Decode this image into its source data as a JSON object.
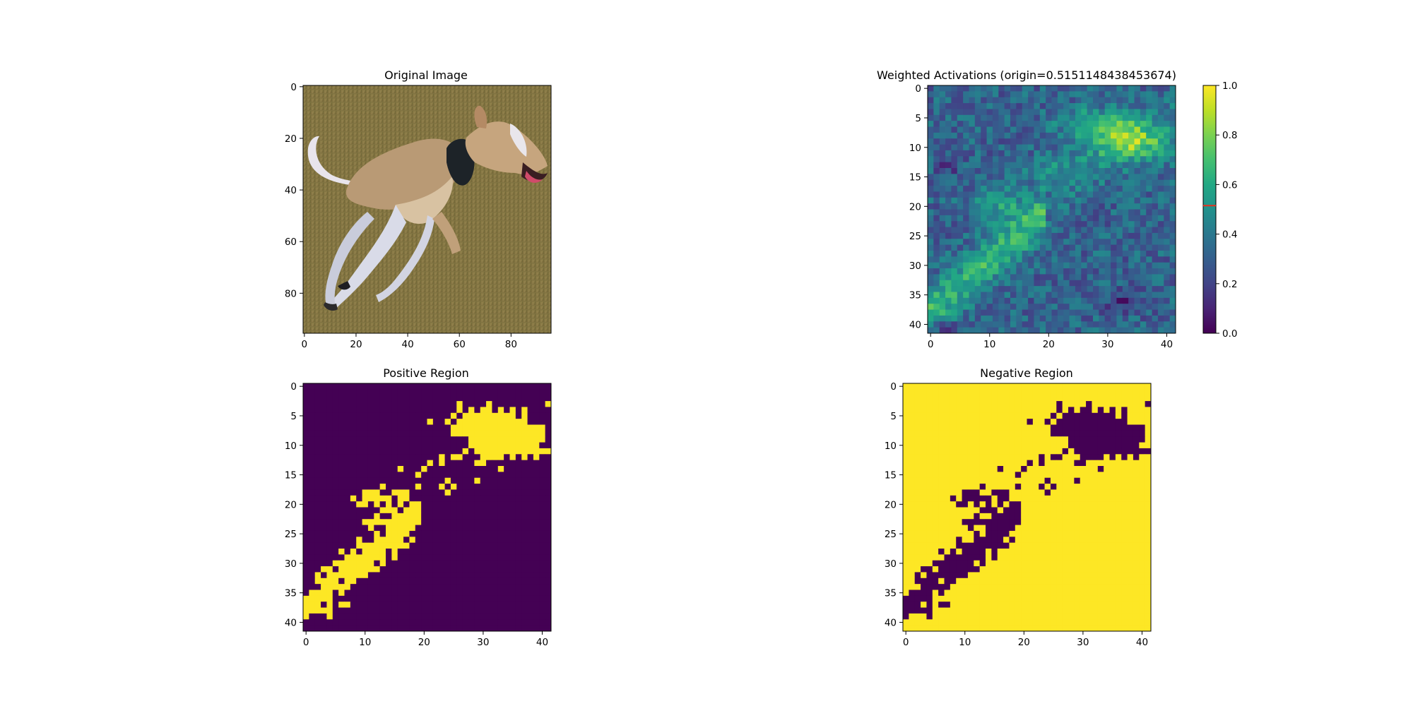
{
  "chart_data": [
    {
      "id": "original",
      "type": "image",
      "title": "Original Image",
      "xlim": [
        0,
        95
      ],
      "ylim": [
        95,
        0
      ],
      "xticks": [
        0,
        20,
        40,
        60,
        80
      ],
      "yticks": [
        0,
        20,
        40,
        60,
        80
      ],
      "content": "photo of a running whippet dog on grass"
    },
    {
      "id": "weighted",
      "type": "heatmap",
      "title": "Weighted Activations (origin=0.5151148438453674)",
      "xlim": [
        0,
        41
      ],
      "ylim": [
        41,
        0
      ],
      "xticks": [
        0,
        10,
        20,
        30,
        40
      ],
      "yticks": [
        0,
        5,
        10,
        15,
        20,
        25,
        30,
        35,
        40
      ],
      "colormap": "viridis",
      "colorbar": {
        "range": [
          0,
          1
        ],
        "ticks": [
          "0.0",
          "0.2",
          "0.4",
          "0.6",
          "0.8",
          "1.0"
        ],
        "marker": 0.5151148438453674,
        "marker_color": "#e8301c"
      }
    },
    {
      "id": "positive",
      "type": "heatmap",
      "title": "Positive Region",
      "xlim": [
        0,
        41
      ],
      "ylim": [
        41,
        0
      ],
      "xticks": [
        0,
        10,
        20,
        30,
        40
      ],
      "yticks": [
        0,
        5,
        10,
        15,
        20,
        25,
        30,
        35,
        40
      ],
      "colors": {
        "on": "#fde725",
        "off": "#440154"
      }
    },
    {
      "id": "negative",
      "type": "heatmap",
      "title": "Negative Region",
      "xlim": [
        0,
        41
      ],
      "ylim": [
        41,
        0
      ],
      "xticks": [
        0,
        10,
        20,
        30,
        40
      ],
      "yticks": [
        0,
        5,
        10,
        15,
        20,
        25,
        30,
        35,
        40
      ],
      "colors": {
        "on": "#440154",
        "off": "#fde725"
      }
    }
  ]
}
